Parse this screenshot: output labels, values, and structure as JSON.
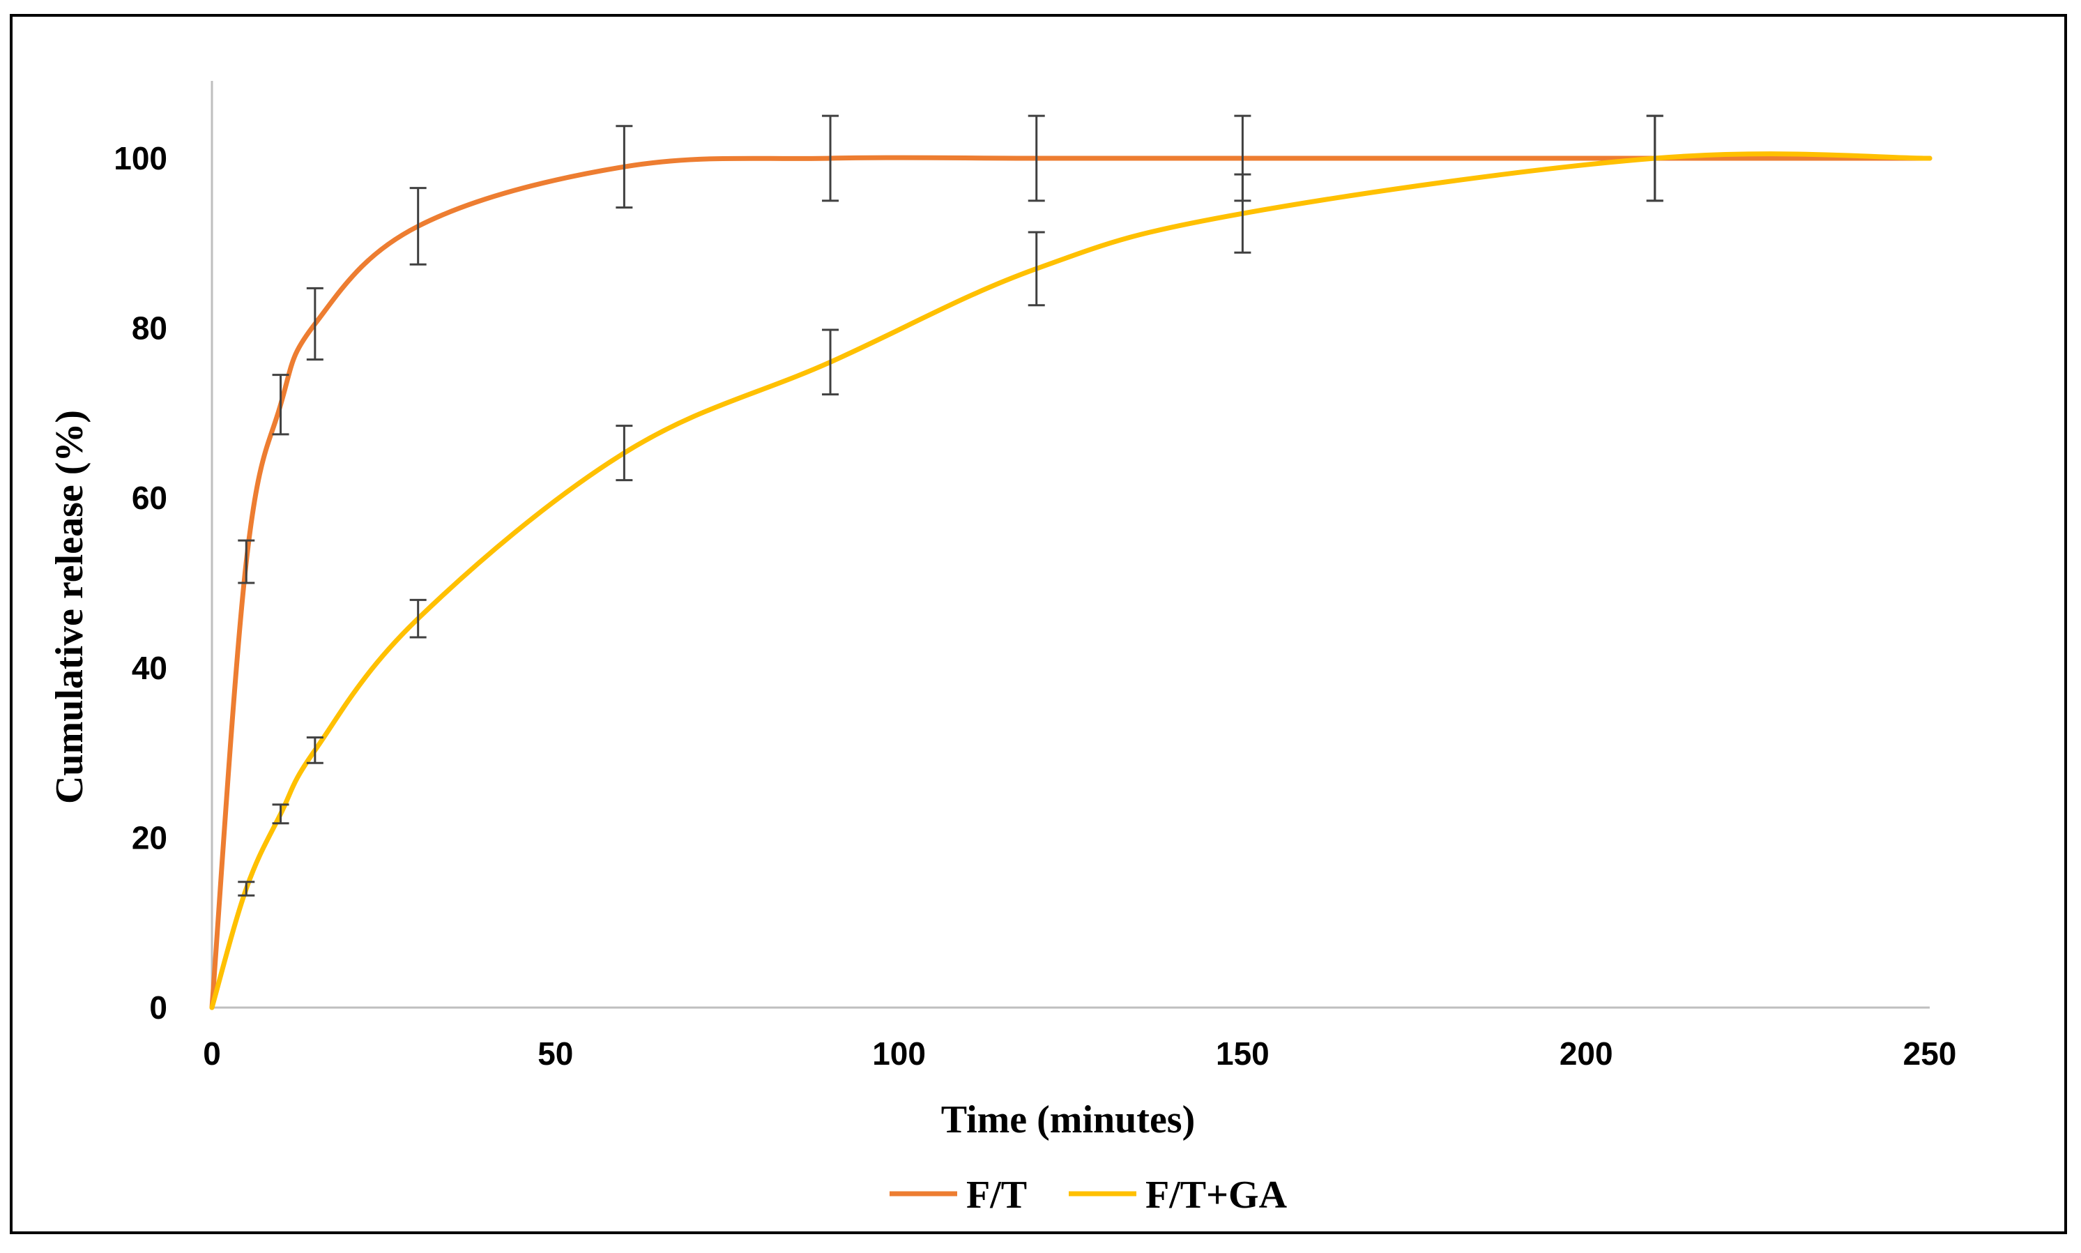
{
  "chart_data": {
    "type": "line",
    "title": "",
    "xlabel": "Time (minutes)",
    "ylabel": "Cumulative release (%)",
    "xlim": [
      0,
      250
    ],
    "ylim": [
      0,
      110
    ],
    "x_ticks": [
      0,
      50,
      100,
      150,
      200,
      250
    ],
    "y_ticks": [
      0,
      20,
      40,
      60,
      80,
      100
    ],
    "grid": false,
    "legend_position": "bottom-center",
    "series": [
      {
        "name": "F/T",
        "color": "#ED7D31",
        "x": [
          0,
          5,
          10,
          15,
          30,
          60,
          90,
          120,
          150,
          210,
          250
        ],
        "y": [
          0,
          52.5,
          71,
          80.5,
          92,
          99,
          100,
          100,
          100,
          100,
          100
        ],
        "error": [
          0,
          2.5,
          3.5,
          4.2,
          4.5,
          4.8,
          5,
          5,
          5,
          5,
          0
        ]
      },
      {
        "name": "F/T+GA",
        "color": "#FFC000",
        "x": [
          0,
          5,
          10,
          15,
          30,
          60,
          90,
          120,
          150,
          210,
          250
        ],
        "y": [
          0,
          14,
          22.8,
          30.3,
          45.8,
          65.3,
          76,
          87,
          93.5,
          100,
          100
        ],
        "error": [
          0,
          0.8,
          1.1,
          1.5,
          2.2,
          3.2,
          3.8,
          4.3,
          4.6,
          5,
          0
        ]
      }
    ]
  }
}
